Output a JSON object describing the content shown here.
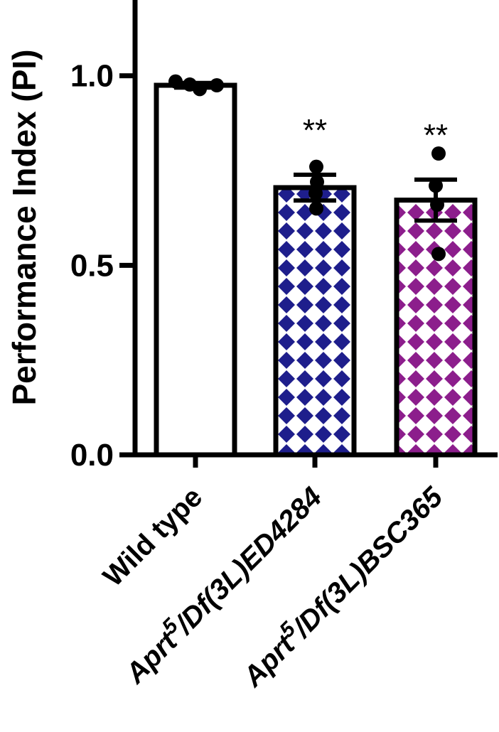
{
  "chart_data": {
    "type": "bar",
    "ylabel": "Performance Index (PI)",
    "ylim": [
      0,
      1.2
    ],
    "yticks": [
      "0.0",
      "0.5",
      "1.0"
    ],
    "ytick_values": [
      0,
      0.5,
      1.0
    ],
    "grid": false,
    "categories": [
      {
        "base": "Wild type",
        "sup": "",
        "rest": ""
      },
      {
        "base": "Aprt",
        "sup": "5",
        "rest": "/Df(3L)ED4284"
      },
      {
        "base": "Aprt",
        "sup": "5",
        "rest": "/Df(3L)BSC365"
      }
    ],
    "values": [
      0.975,
      0.705,
      0.672
    ],
    "sem": [
      0.006,
      0.034,
      0.054
    ],
    "points": [
      [
        0.985,
        0.977,
        0.965,
        0.975
      ],
      [
        0.76,
        0.72,
        0.69,
        0.65
      ],
      [
        0.795,
        0.71,
        0.66,
        0.53
      ]
    ],
    "significance": [
      "",
      "**",
      "**"
    ],
    "colors": [
      "#ffffff",
      "#1e1e8c",
      "#8c1e8c"
    ]
  }
}
